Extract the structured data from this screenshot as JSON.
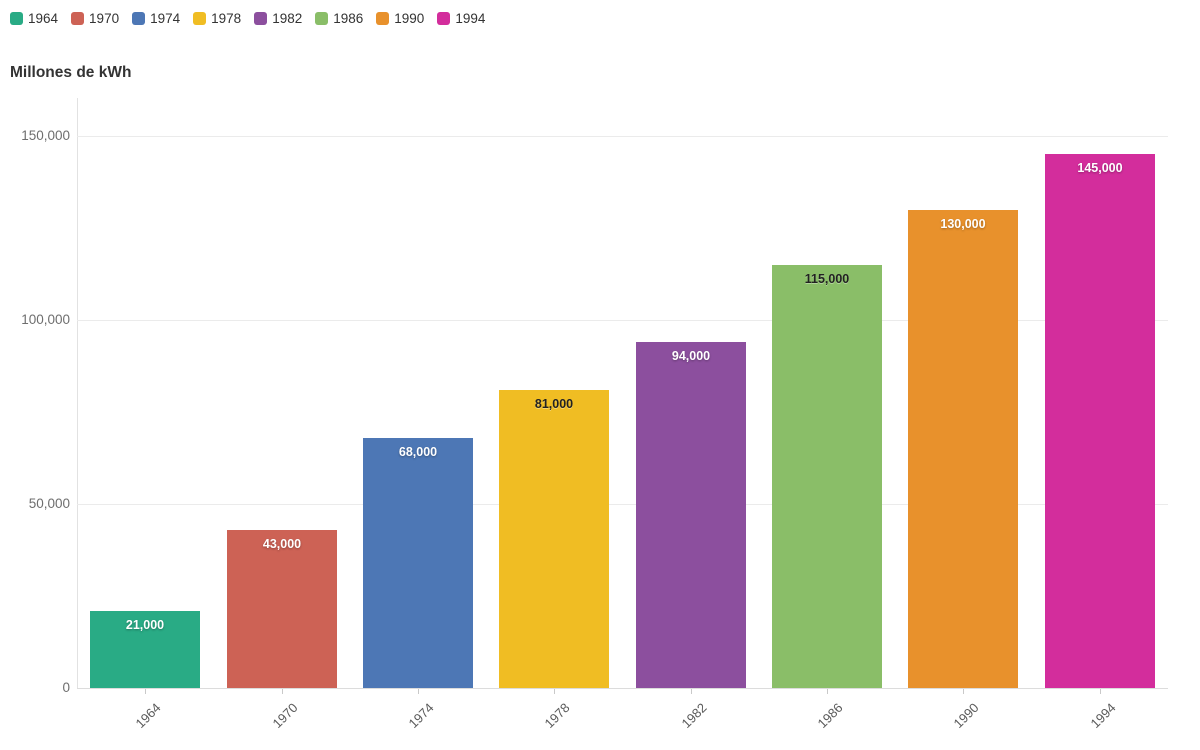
{
  "header": {
    "title": "Millones de kWh"
  },
  "legend": {
    "items": [
      {
        "label": "1964",
        "color": "#29ab85"
      },
      {
        "label": "1970",
        "color": "#cd6255"
      },
      {
        "label": "1974",
        "color": "#4d77b5"
      },
      {
        "label": "1978",
        "color": "#f0bd23"
      },
      {
        "label": "1982",
        "color": "#8c4f9e"
      },
      {
        "label": "1986",
        "color": "#8abe68"
      },
      {
        "label": "1990",
        "color": "#e8912c"
      },
      {
        "label": "1994",
        "color": "#d32d9c"
      }
    ]
  },
  "chart_data": {
    "type": "bar",
    "title": "Millones de kWh",
    "categories": [
      "1964",
      "1970",
      "1974",
      "1978",
      "1982",
      "1986",
      "1990",
      "1994"
    ],
    "values": [
      21000,
      43000,
      68000,
      81000,
      94000,
      115000,
      130000,
      145000
    ],
    "bar_colors": [
      "#29ab85",
      "#cd6255",
      "#4d77b5",
      "#f0bd23",
      "#8c4f9e",
      "#8abe68",
      "#e8912c",
      "#d32d9c"
    ],
    "value_labels": [
      "21,000",
      "43,000",
      "68,000",
      "81,000",
      "94,000",
      "115,000",
      "130,000",
      "145,000"
    ],
    "value_label_text_colors": [
      "#ffffff",
      "#ffffff",
      "#ffffff",
      "#222222",
      "#ffffff",
      "#222222",
      "#ffffff",
      "#ffffff"
    ],
    "xlabel": "",
    "ylabel": "Millones de kWh",
    "ylim": [
      0,
      160000
    ],
    "yticks": [
      {
        "value": 0,
        "label": "0"
      },
      {
        "value": 50000,
        "label": "50,000"
      },
      {
        "value": 100000,
        "label": "100,000"
      },
      {
        "value": 150000,
        "label": "150,000"
      }
    ],
    "grid": "horizontal",
    "legend_position": "top-left"
  }
}
